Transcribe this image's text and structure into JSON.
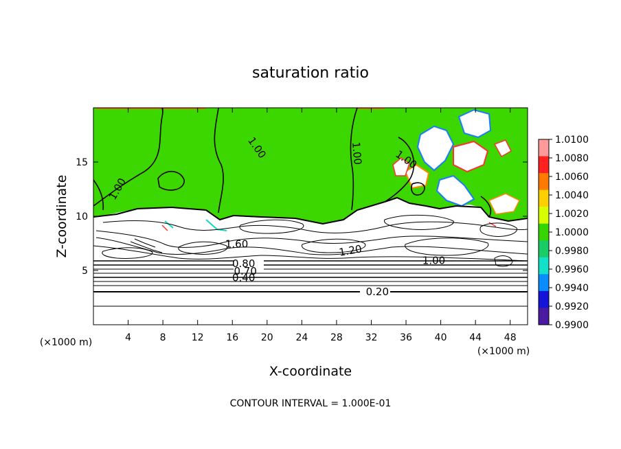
{
  "chart_data": {
    "type": "heatmap",
    "title": "saturation ratio",
    "xlabel": "X-coordinate",
    "ylabel": "Z-coordinate",
    "x_unit": "(×1000 m)",
    "y_unit": "(×1000 m)",
    "xlim": [
      0,
      50
    ],
    "ylim": [
      0,
      20
    ],
    "x_ticks": [
      4,
      8,
      12,
      16,
      20,
      24,
      28,
      32,
      36,
      40,
      44,
      48
    ],
    "y_ticks": [
      5,
      10,
      15
    ],
    "footer": "CONTOUR INTERVAL = 1.000E-01",
    "colorbar": {
      "ticks": [
        "1.0100",
        "1.0080",
        "1.0060",
        "1.0040",
        "1.0020",
        "1.0000",
        "0.9980",
        "0.9960",
        "0.9940",
        "0.9920",
        "0.9900"
      ],
      "colors": [
        "#ff9a9a",
        "#ff2020",
        "#ff7a00",
        "#ffd000",
        "#d8ff00",
        "#36d400",
        "#19cc66",
        "#12e0c8",
        "#0a8cff",
        "#1414d8",
        "#4a1aa0"
      ]
    },
    "field_colors": {
      "supersaturated": "#3cd600",
      "subsaturated": "#ffffff"
    },
    "contour_labels": [
      {
        "text": "1.00",
        "x": 2.8,
        "y": 12.5,
        "angle": -60
      },
      {
        "text": "1.00",
        "x": 18.8,
        "y": 16.3,
        "angle": 55
      },
      {
        "text": "1.00",
        "x": 30.3,
        "y": 15.8,
        "angle": 85
      },
      {
        "text": "1.00",
        "x": 36.0,
        "y": 15.2,
        "angle": 35
      },
      {
        "text": "1.60",
        "x": 16.5,
        "y": 7.4,
        "angle": 0
      },
      {
        "text": "1.20",
        "x": 29.6,
        "y": 6.8,
        "angle": -10
      },
      {
        "text": "1.00",
        "x": 39.2,
        "y": 5.9,
        "angle": 0
      },
      {
        "text": "0.80",
        "x": 17.3,
        "y": 5.6,
        "angle": 0
      },
      {
        "text": "0.70",
        "x": 17.5,
        "y": 4.9,
        "angle": 0
      },
      {
        "text": "0.40",
        "x": 17.3,
        "y": 4.3,
        "angle": 0
      },
      {
        "text": "0.20",
        "x": 32.7,
        "y": 3.0,
        "angle": 0
      }
    ]
  }
}
